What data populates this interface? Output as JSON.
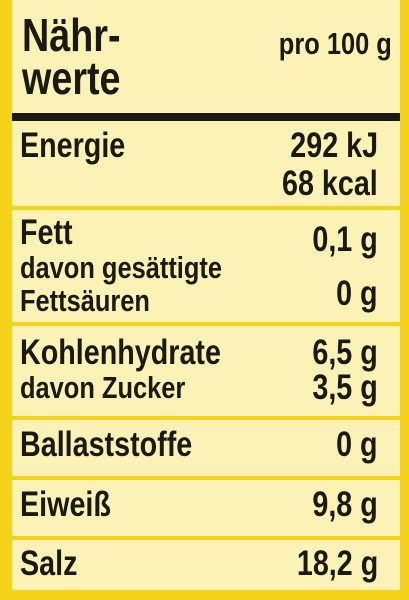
{
  "header": {
    "title": [
      "Nähr-",
      "werte"
    ],
    "unit": "pro 100 g"
  },
  "rows": [
    {
      "labels": [
        "Energie"
      ],
      "values": [
        "292 kJ",
        "68 kcal"
      ]
    },
    {
      "labels": [
        "Fett",
        "davon gesättigte",
        "Fettsäuren"
      ],
      "values": [
        "0,1 g",
        "0 g"
      ]
    },
    {
      "labels": [
        "Kohlenhydrate",
        "davon Zucker"
      ],
      "values": [
        "6,5 g",
        "3,5 g"
      ]
    },
    {
      "labels": [
        "Ballaststoffe"
      ],
      "values": [
        "0 g"
      ]
    },
    {
      "labels": [
        "Eiweiß"
      ],
      "values": [
        "9,8 g"
      ]
    },
    {
      "labels": [
        "Salz"
      ],
      "values": [
        "18,2 g"
      ]
    }
  ]
}
